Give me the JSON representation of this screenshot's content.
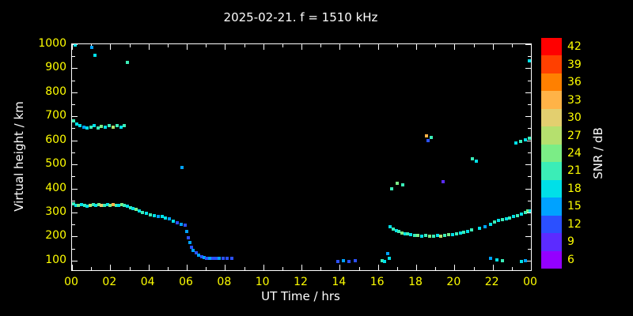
{
  "title": "2025-02-21. f = 1510 kHz",
  "colors": {
    "background": "#000000",
    "box": "#ffffff",
    "tick_label": "#ffff00",
    "axis_label": "#ffffff"
  },
  "chart_data": {
    "type": "scatter",
    "title": "2025-02-21. f = 1510 kHz",
    "xlabel": "UT Time / hrs",
    "ylabel": "Virtual height / km",
    "xlim": [
      0,
      24
    ],
    "ylim": [
      60,
      1000
    ],
    "x_ticks": [
      "00",
      "02",
      "04",
      "06",
      "08",
      "10",
      "12",
      "14",
      "16",
      "18",
      "20",
      "22",
      "00"
    ],
    "y_ticks": [
      "100",
      "200",
      "300",
      "400",
      "500",
      "600",
      "700",
      "800",
      "900",
      "1000"
    ],
    "grid": false,
    "colorbar": {
      "label": "SNR / dB",
      "levels": [
        {
          "value": 42,
          "color": "#ff0000"
        },
        {
          "value": 39,
          "color": "#ff4000"
        },
        {
          "value": 36,
          "color": "#ff8000"
        },
        {
          "value": 33,
          "color": "#ffb347"
        },
        {
          "value": 30,
          "color": "#e3cf6f"
        },
        {
          "value": 27,
          "color": "#b5e06e"
        },
        {
          "value": 24,
          "color": "#7bed86"
        },
        {
          "value": 21,
          "color": "#3bedb7"
        },
        {
          "value": 18,
          "color": "#00e0e8"
        },
        {
          "value": 15,
          "color": "#00a2ff"
        },
        {
          "value": 12,
          "color": "#2b50ff"
        },
        {
          "value": 9,
          "color": "#5c2bff"
        },
        {
          "value": 6,
          "color": "#9400ff"
        }
      ]
    },
    "point_fields": [
      "ut_hours",
      "virtual_height_km",
      "snr_db"
    ],
    "points": [
      [
        0.1,
        680,
        21
      ],
      [
        0.25,
        667,
        18
      ],
      [
        0.4,
        660,
        18
      ],
      [
        0.6,
        655,
        15
      ],
      [
        0.8,
        650,
        18
      ],
      [
        1.0,
        656,
        21
      ],
      [
        1.15,
        660,
        18
      ],
      [
        1.35,
        652,
        21
      ],
      [
        1.55,
        658,
        24
      ],
      [
        1.75,
        654,
        18
      ],
      [
        1.95,
        660,
        21
      ],
      [
        2.15,
        656,
        27
      ],
      [
        2.35,
        660,
        21
      ],
      [
        2.55,
        654,
        18
      ],
      [
        2.75,
        662,
        21
      ],
      [
        0.15,
        998,
        18
      ],
      [
        1.05,
        988,
        15
      ],
      [
        1.2,
        955,
        18
      ],
      [
        2.9,
        925,
        21
      ],
      [
        23.9,
        930,
        18
      ],
      [
        0.1,
        335,
        21
      ],
      [
        0.22,
        330,
        18
      ],
      [
        0.35,
        328,
        24
      ],
      [
        0.5,
        332,
        18
      ],
      [
        0.65,
        330,
        21
      ],
      [
        0.8,
        326,
        18
      ],
      [
        0.95,
        331,
        27
      ],
      [
        1.1,
        333,
        21
      ],
      [
        1.25,
        330,
        18
      ],
      [
        1.4,
        334,
        24
      ],
      [
        1.55,
        331,
        30
      ],
      [
        1.7,
        328,
        21
      ],
      [
        1.85,
        332,
        18
      ],
      [
        2.0,
        330,
        24
      ],
      [
        2.15,
        334,
        33
      ],
      [
        2.3,
        330,
        21
      ],
      [
        2.45,
        328,
        18
      ],
      [
        2.6,
        332,
        24
      ],
      [
        2.75,
        329,
        21
      ],
      [
        2.9,
        325,
        18
      ],
      [
        3.05,
        320,
        21
      ],
      [
        3.2,
        316,
        18
      ],
      [
        3.35,
        312,
        24
      ],
      [
        3.5,
        308,
        18
      ],
      [
        3.7,
        301,
        21
      ],
      [
        3.9,
        296,
        18
      ],
      [
        4.1,
        291,
        21
      ],
      [
        4.3,
        288,
        18
      ],
      [
        4.5,
        285,
        15
      ],
      [
        4.7,
        282,
        18
      ],
      [
        4.9,
        278,
        18
      ],
      [
        5.1,
        272,
        15
      ],
      [
        5.3,
        265,
        18
      ],
      [
        5.5,
        258,
        12
      ],
      [
        5.7,
        252,
        15
      ],
      [
        5.9,
        248,
        12
      ],
      [
        6.0,
        222,
        15
      ],
      [
        6.08,
        196,
        12
      ],
      [
        6.15,
        175,
        15
      ],
      [
        6.25,
        156,
        12
      ],
      [
        6.35,
        142,
        15
      ],
      [
        6.48,
        131,
        12
      ],
      [
        6.62,
        123,
        15
      ],
      [
        6.78,
        117,
        12
      ],
      [
        6.92,
        112,
        15
      ],
      [
        7.05,
        110,
        12
      ],
      [
        7.2,
        108,
        15
      ],
      [
        7.35,
        110,
        12
      ],
      [
        7.52,
        108,
        12
      ],
      [
        7.7,
        110,
        15
      ],
      [
        7.9,
        108,
        12
      ],
      [
        8.1,
        110,
        12
      ],
      [
        8.35,
        108,
        12
      ],
      [
        5.75,
        488,
        15
      ],
      [
        13.9,
        96,
        12
      ],
      [
        14.2,
        98,
        15
      ],
      [
        14.5,
        96,
        12
      ],
      [
        14.8,
        100,
        12
      ],
      [
        16.2,
        100,
        21
      ],
      [
        16.35,
        96,
        18
      ],
      [
        16.5,
        128,
        15
      ],
      [
        16.6,
        108,
        18
      ],
      [
        16.65,
        240,
        18
      ],
      [
        16.8,
        232,
        21
      ],
      [
        16.95,
        225,
        18
      ],
      [
        17.1,
        220,
        21
      ],
      [
        17.25,
        215,
        24
      ],
      [
        17.4,
        212,
        18
      ],
      [
        17.55,
        210,
        21
      ],
      [
        17.72,
        207,
        18
      ],
      [
        17.9,
        205,
        21
      ],
      [
        18.1,
        203,
        24
      ],
      [
        18.3,
        202,
        18
      ],
      [
        18.5,
        204,
        21
      ],
      [
        18.7,
        202,
        24
      ],
      [
        18.9,
        200,
        21
      ],
      [
        19.1,
        203,
        18
      ],
      [
        19.3,
        202,
        27
      ],
      [
        19.5,
        205,
        21
      ],
      [
        19.7,
        207,
        24
      ],
      [
        19.9,
        208,
        18
      ],
      [
        20.1,
        210,
        21
      ],
      [
        20.3,
        213,
        18
      ],
      [
        20.5,
        217,
        21
      ],
      [
        20.7,
        222,
        18
      ],
      [
        20.9,
        228,
        21
      ],
      [
        21.3,
        235,
        18
      ],
      [
        21.6,
        242,
        15
      ],
      [
        21.9,
        252,
        18
      ],
      [
        22.1,
        260,
        21
      ],
      [
        22.3,
        266,
        18
      ],
      [
        22.5,
        270,
        21
      ],
      [
        22.7,
        274,
        18
      ],
      [
        22.9,
        278,
        21
      ],
      [
        23.1,
        282,
        18
      ],
      [
        23.3,
        288,
        21
      ],
      [
        23.5,
        294,
        18
      ],
      [
        23.7,
        300,
        21
      ],
      [
        23.85,
        306,
        24
      ],
      [
        23.97,
        308,
        18
      ],
      [
        16.7,
        400,
        21
      ],
      [
        17.0,
        420,
        24
      ],
      [
        17.3,
        414,
        21
      ],
      [
        19.4,
        428,
        9
      ],
      [
        18.55,
        618,
        33
      ],
      [
        18.62,
        600,
        12
      ],
      [
        18.78,
        612,
        21
      ],
      [
        20.95,
        525,
        21
      ],
      [
        21.15,
        512,
        18
      ],
      [
        23.2,
        588,
        18
      ],
      [
        23.45,
        596,
        21
      ],
      [
        23.7,
        602,
        18
      ],
      [
        23.92,
        608,
        21
      ],
      [
        21.9,
        108,
        15
      ],
      [
        22.2,
        102,
        18
      ],
      [
        22.5,
        98,
        21
      ],
      [
        23.5,
        95,
        18
      ],
      [
        23.72,
        100,
        15
      ]
    ]
  }
}
